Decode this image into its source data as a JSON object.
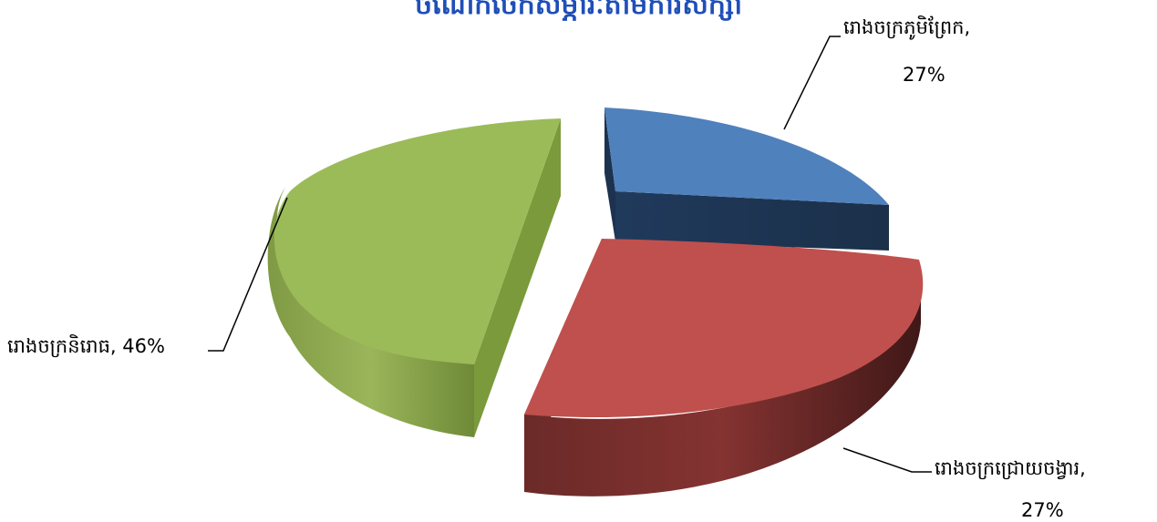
{
  "chart_data": {
    "type": "pie",
    "title": "ចំណែកចែកសម្ភារៈតាមការសិក្សា",
    "slices": [
      {
        "label": "រោងចក្រភូមិព្រែក",
        "value": 27,
        "value_label": "27%",
        "color": "#4f81bd",
        "side_color": "#1f3350"
      },
      {
        "label": "រោងចក្រជ្រោយចង្វារ",
        "value": 27,
        "value_label": "27%",
        "color": "#c0504d",
        "side_color": "#5c2220"
      },
      {
        "label": "រោងចក្រនិរោធ",
        "value": 46,
        "value_label": "46%",
        "color": "#9bbb59",
        "side_color": "#6e8a36"
      }
    ],
    "style": "3d-exploded"
  }
}
